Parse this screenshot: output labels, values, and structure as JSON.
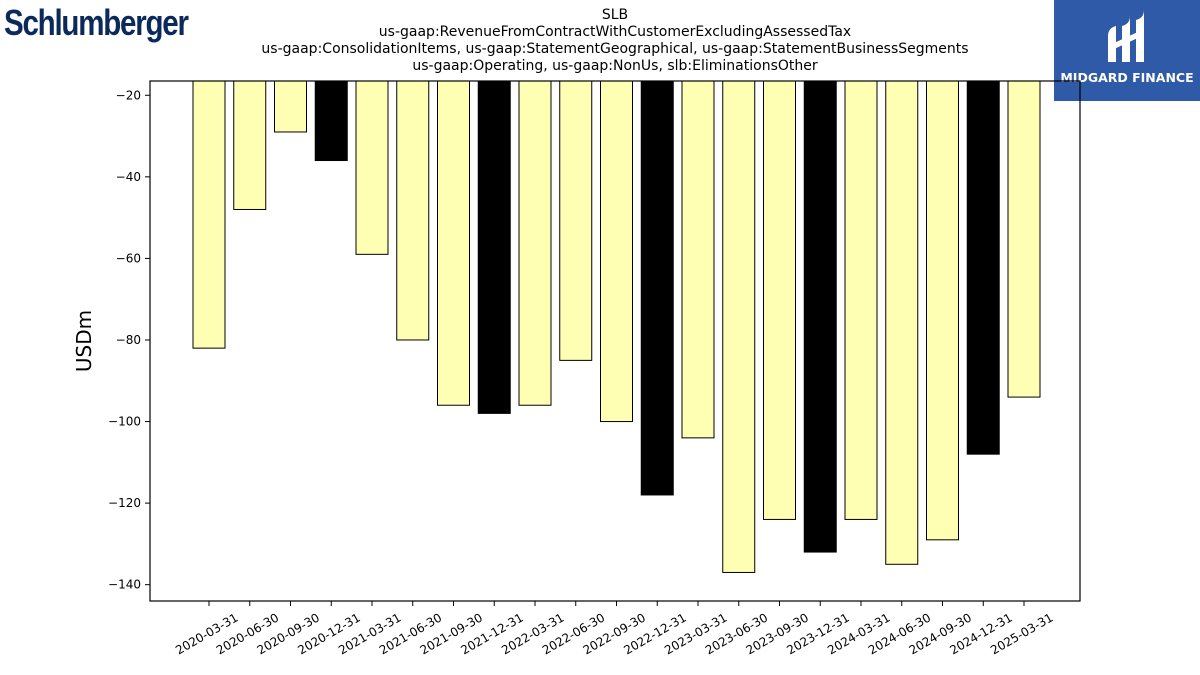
{
  "brand": {
    "left_logo_text": "Schlumberger",
    "right_logo_text": "MIDGARD FINANCE",
    "right_logo_bg": "#2f5aa8"
  },
  "chart_data": {
    "type": "bar",
    "title": "SLB",
    "subtitle_lines": [
      "us-gaap:RevenueFromContractWithCustomerExcludingAssessedTax",
      "us-gaap:ConsolidationItems, us-gaap:StatementGeographical, us-gaap:StatementBusinessSegments",
      "us-gaap:Operating, us-gaap:NonUs, slb:EliminationsOther"
    ],
    "xlabel": "",
    "ylabel": "USDm",
    "ylim": [
      -144,
      -16.5
    ],
    "yticks": [
      -20,
      -40,
      -60,
      -80,
      -100,
      -120,
      -140
    ],
    "grid": false,
    "categories": [
      "2020-03-31",
      "2020-06-30",
      "2020-09-30",
      "2020-12-31",
      "2021-03-31",
      "2021-06-30",
      "2021-09-30",
      "2021-12-31",
      "2022-03-31",
      "2022-06-30",
      "2022-09-30",
      "2022-12-31",
      "2023-03-31",
      "2023-06-30",
      "2023-09-30",
      "2023-12-31",
      "2024-03-31",
      "2024-06-30",
      "2024-09-30",
      "2024-12-31",
      "2025-03-31"
    ],
    "values": [
      -82,
      -48,
      -29,
      -36,
      -59,
      -80,
      -96,
      -98,
      -96,
      -85,
      -100,
      -118,
      -104,
      -137,
      -124,
      -132,
      -124,
      -135,
      -129,
      -108,
      -94
    ],
    "bar_colors": [
      "#ffffb3",
      "#ffffb3",
      "#ffffb3",
      "#000000",
      "#ffffb3",
      "#ffffb3",
      "#ffffb3",
      "#000000",
      "#ffffb3",
      "#ffffb3",
      "#ffffb3",
      "#000000",
      "#ffffb3",
      "#ffffb3",
      "#ffffb3",
      "#000000",
      "#ffffb3",
      "#ffffb3",
      "#ffffb3",
      "#000000",
      "#ffffb3"
    ],
    "bar_edge_color": "#000000"
  }
}
